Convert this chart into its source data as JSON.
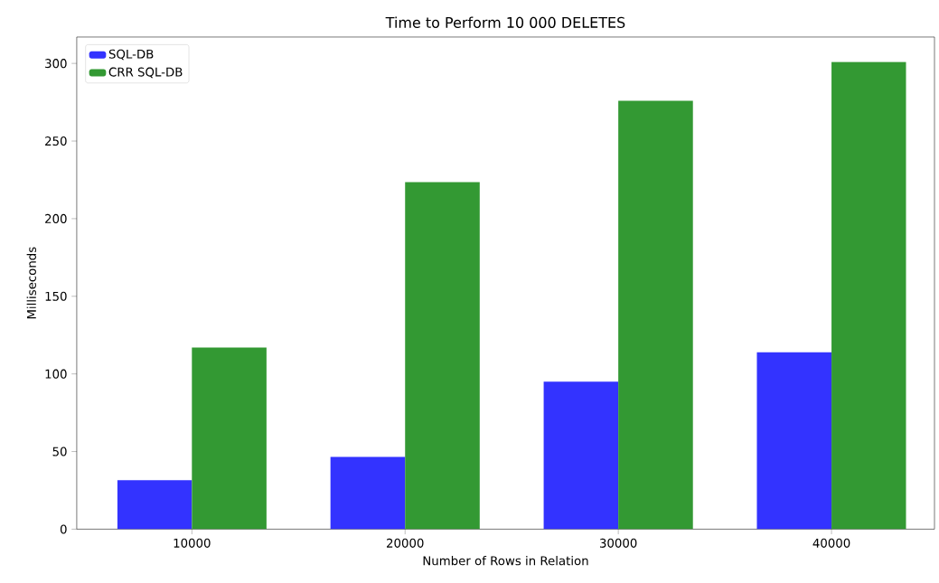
{
  "chart_data": {
    "type": "bar",
    "title": "Time to Perform 10 000 DELETES",
    "xlabel": "Number of Rows in Relation",
    "ylabel": "Milliseconds",
    "categories": [
      "10000",
      "20000",
      "30000",
      "40000"
    ],
    "series": [
      {
        "name": "SQL-DB",
        "color": "#3333ff",
        "values": [
          31.5,
          46.5,
          95,
          114
        ]
      },
      {
        "name": "CRR SQL-DB",
        "color": "#339933",
        "values": [
          117,
          223.5,
          276,
          301
        ]
      }
    ],
    "ylim": [
      0,
      317
    ],
    "yticks": [
      0,
      50,
      100,
      150,
      200,
      250,
      300
    ],
    "legend": "top left",
    "grid": false
  }
}
